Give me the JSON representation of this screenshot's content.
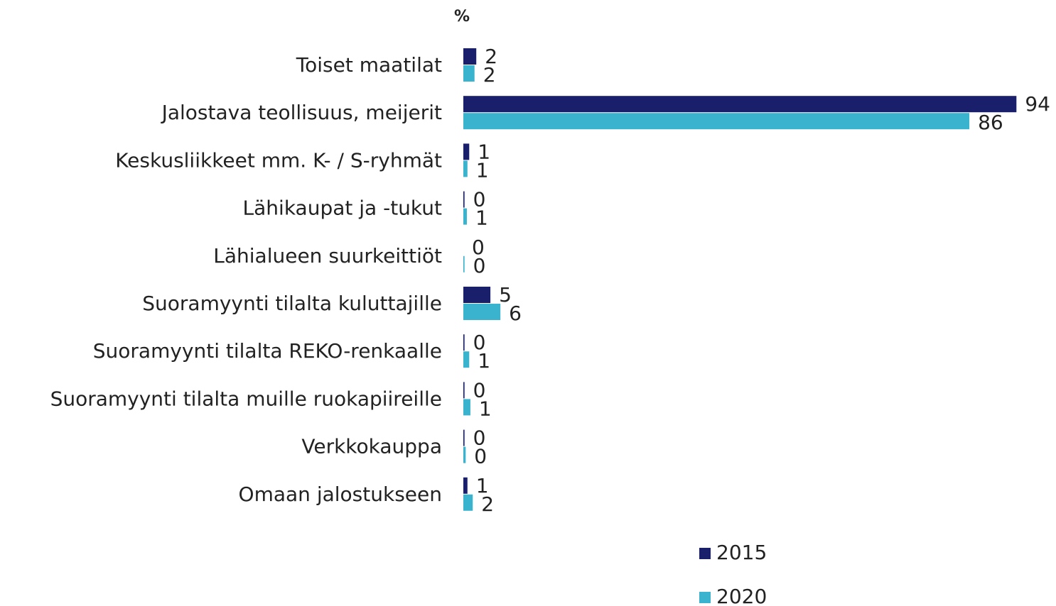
{
  "chart_data": {
    "type": "barh",
    "axis_label": "%",
    "categories": [
      "Toiset maatilat",
      "Jalostava teollisuus, meijerit",
      "Keskusliikkeet mm. K- / S-ryhmät",
      "Lähikaupat ja -tukut",
      "Lähialueen suurkeittiöt",
      "Suoramyynti tilalta kuluttajille",
      "Suoramyynti tilalta REKO-renkaalle",
      "Suoramyynti tilalta muille ruokapiireille",
      "Verkkokauppa",
      "Omaan jalostukseen"
    ],
    "series": [
      {
        "name": "2015",
        "color": "#1a1f6b",
        "values": [
          2.2,
          94,
          1.0,
          0.2,
          0,
          4.6,
          0.2,
          0.2,
          0.2,
          0.7
        ],
        "value_labels": [
          "2",
          "94",
          "1",
          "0",
          "0",
          "5",
          "0",
          "0",
          "0",
          "1"
        ]
      },
      {
        "name": "2020",
        "color": "#3ab3cf",
        "values": [
          1.9,
          86,
          0.7,
          0.6,
          0.2,
          6.3,
          1.0,
          1.2,
          0.4,
          1.6
        ],
        "value_labels": [
          "2",
          "86",
          "1",
          "1",
          "0",
          "6",
          "1",
          "1",
          "0",
          "2"
        ]
      }
    ]
  }
}
